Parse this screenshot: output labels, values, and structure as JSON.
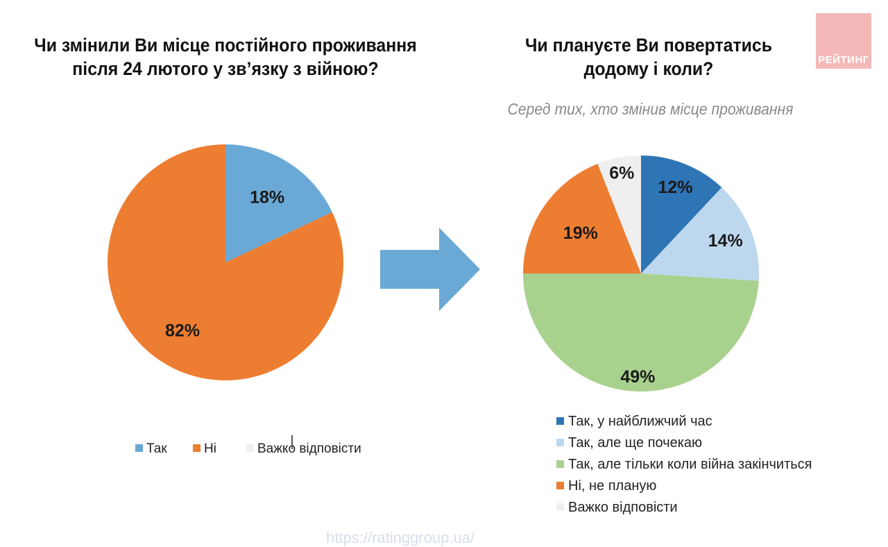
{
  "logo": {
    "text": "РЕЙТИНГ",
    "color": "#f4b8b8"
  },
  "footer": {
    "url": "https://ratinggroup.ua/"
  },
  "colors": {
    "blue_light": "#6aa8d6",
    "orange": "#ed7d31",
    "grey": "#efefef",
    "blue_dark": "#2e75b6",
    "blue_pale": "#bdd7ee",
    "green": "#a9d18e",
    "arrow": "#6aa8d6"
  },
  "chart_data": [
    {
      "type": "pie",
      "title_lines": [
        "Чи змінили Ви місце постійного проживання",
        "після  24 лютого у зв’язку з війною?"
      ],
      "categories": [
        "Так",
        "Ні",
        "Важко відповісти"
      ],
      "values": [
        18,
        82,
        0
      ],
      "labels": [
        "18%",
        "82%",
        ""
      ],
      "colors": [
        "#6aa8d6",
        "#ed7d31",
        "#efefef"
      ],
      "legend_position": "bottom"
    },
    {
      "type": "pie",
      "title_lines": [
        "Чи плануєте Ви повертатись",
        "додому і коли?"
      ],
      "subtitle": "Серед тих, хто змінив місце проживання",
      "categories": [
        "Так, у найближчий час",
        "Так, але ще почекаю",
        "Так, але тільки коли війна закінчиться",
        "Ні, не планую",
        "Важко відповісти"
      ],
      "values": [
        12,
        14,
        49,
        19,
        6
      ],
      "labels": [
        "12%",
        "14%",
        "49%",
        "19%",
        "6%"
      ],
      "colors": [
        "#2e75b6",
        "#bdd7ee",
        "#a9d18e",
        "#ed7d31",
        "#efefef"
      ],
      "legend_position": "bottom"
    }
  ]
}
